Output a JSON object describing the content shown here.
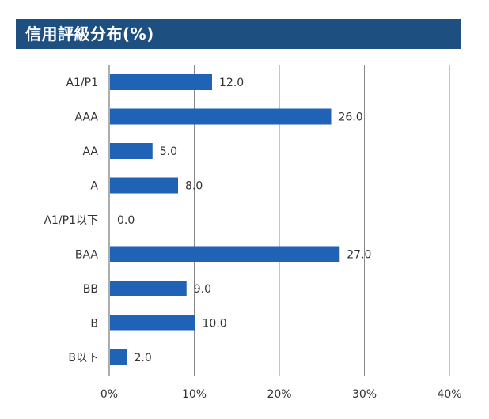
{
  "header": {
    "title": "信用評級分布(%)"
  },
  "colors": {
    "bar": "#1f62b6",
    "header_bg": "#1d4f80",
    "grid": "#888888"
  },
  "chart_data": {
    "type": "bar",
    "orientation": "horizontal",
    "title": "信用評級分布(%)",
    "categories": [
      "A1/P1",
      "AAA",
      "AA",
      "A",
      "A1/P1以下",
      "BAA",
      "BB",
      "B",
      "B以下"
    ],
    "values": [
      12.0,
      26.0,
      5.0,
      8.0,
      0.0,
      27.0,
      9.0,
      10.0,
      2.0
    ],
    "value_labels": [
      "12.0",
      "26.0",
      "5.0",
      "8.0",
      "0.0",
      "27.0",
      "9.0",
      "10.0",
      "2.0"
    ],
    "xlim": [
      0,
      40
    ],
    "xticks": [
      "0%",
      "10%",
      "20%",
      "30%",
      "40%"
    ],
    "grid": "vertical"
  }
}
